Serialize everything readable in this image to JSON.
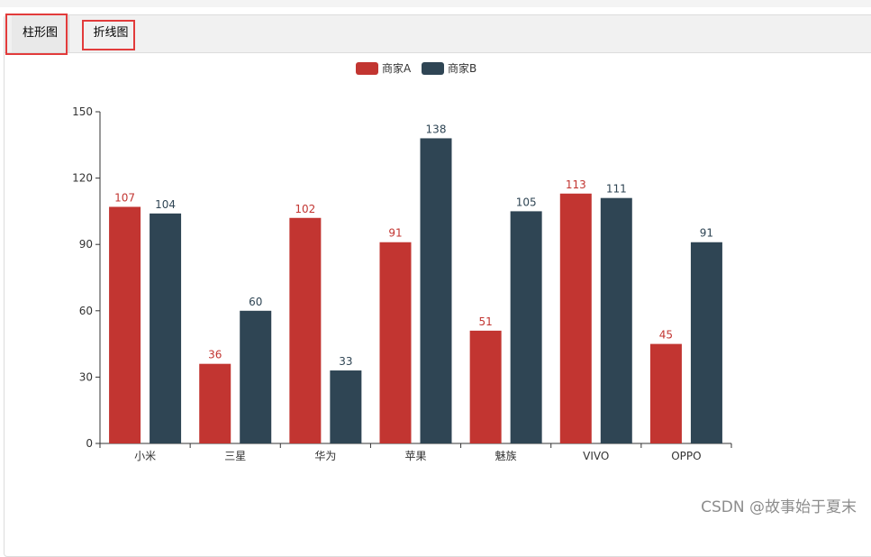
{
  "tabs": [
    {
      "label": "柱形图"
    },
    {
      "label": "折线图"
    }
  ],
  "watermark": "CSDN @故事始于夏末",
  "chart_data": {
    "type": "bar",
    "categories": [
      "小米",
      "三星",
      "华为",
      "苹果",
      "魅族",
      "VIVO",
      "OPPO"
    ],
    "series": [
      {
        "name": "商家A",
        "color": "#c23531",
        "values": [
          107,
          36,
          102,
          91,
          51,
          113,
          45
        ]
      },
      {
        "name": "商家B",
        "color": "#2f4554",
        "values": [
          104,
          60,
          33,
          138,
          105,
          111,
          91
        ]
      }
    ],
    "ylim": [
      0,
      150
    ],
    "yticks": [
      0,
      30,
      60,
      90,
      120,
      150
    ],
    "legend_position": "top-center",
    "grid": false,
    "data_labels": true
  }
}
